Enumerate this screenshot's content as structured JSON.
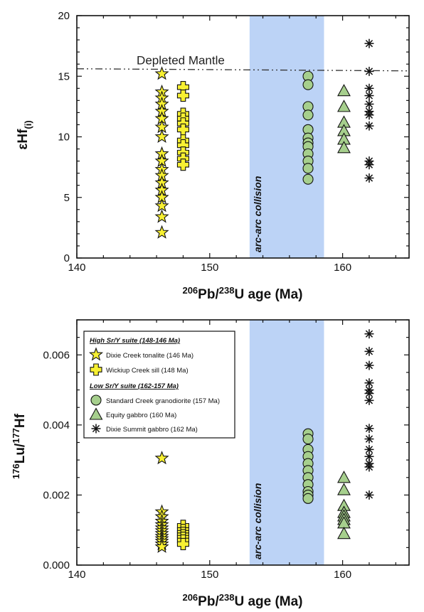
{
  "chart_data": [
    {
      "type": "scatter",
      "panel": "top",
      "xlim": [
        140,
        165
      ],
      "ylim": [
        0,
        20
      ],
      "x_ticks": [
        "140",
        "150",
        "160"
      ],
      "y_ticks": [
        "0",
        "5",
        "10",
        "15",
        "20"
      ],
      "xlabel": {
        "sup1": "206",
        "mid1": "Pb/",
        "sup2": "238",
        "rest": "U age (Ma)"
      },
      "ylabel": {
        "main": "εHf",
        "sub": "(i)"
      },
      "depleted_mantle": {
        "y": 15.5,
        "label": "Depleted Mantle"
      },
      "shaded_band": {
        "x": [
          153,
          158.6
        ],
        "label": "arc-arc collision",
        "color": "#bcd3f6"
      },
      "series": [
        {
          "key": "dixie_creek",
          "marker": "star",
          "color": "#f7f032",
          "points": [
            [
              146.4,
              15.2
            ],
            [
              146.4,
              13.7
            ],
            [
              146.4,
              13.2
            ],
            [
              146.4,
              12.7
            ],
            [
              146.4,
              12.1
            ],
            [
              146.4,
              11.5
            ],
            [
              146.4,
              10.8
            ],
            [
              146.4,
              10.0
            ],
            [
              146.4,
              8.6
            ],
            [
              146.4,
              8.0
            ],
            [
              146.4,
              7.3
            ],
            [
              146.4,
              6.8
            ],
            [
              146.4,
              6.2
            ],
            [
              146.4,
              5.6
            ],
            [
              146.4,
              5.0
            ],
            [
              146.4,
              4.3
            ],
            [
              146.4,
              3.4
            ],
            [
              146.4,
              2.1
            ]
          ]
        },
        {
          "key": "wickiup",
          "marker": "cross",
          "color": "#f7f032",
          "points": [
            [
              148,
              14.1
            ],
            [
              148,
              13.4
            ],
            [
              148,
              11.9
            ],
            [
              148,
              11.5
            ],
            [
              148,
              11.1
            ],
            [
              148,
              10.6
            ],
            [
              148,
              9.7
            ],
            [
              148,
              9.3
            ],
            [
              148,
              8.7
            ],
            [
              148,
              8.2
            ],
            [
              148,
              7.7
            ]
          ]
        },
        {
          "key": "standard_creek",
          "marker": "circle",
          "color": "#a6cf8d",
          "points": [
            [
              157.4,
              15.0
            ],
            [
              157.4,
              14.3
            ],
            [
              157.4,
              12.5
            ],
            [
              157.4,
              11.8
            ],
            [
              157.4,
              10.6
            ],
            [
              157.4,
              9.9
            ],
            [
              157.4,
              9.5
            ],
            [
              157.4,
              9.2
            ],
            [
              157.4,
              8.6
            ],
            [
              157.4,
              8.0
            ],
            [
              157.4,
              7.4
            ],
            [
              157.4,
              6.5
            ]
          ]
        },
        {
          "key": "equity",
          "marker": "triangle",
          "color": "#a6cf8d",
          "points": [
            [
              160.1,
              13.8
            ],
            [
              160.1,
              12.5
            ],
            [
              160.1,
              11.2
            ],
            [
              160.1,
              10.5
            ],
            [
              160.1,
              9.8
            ],
            [
              160.1,
              9.1
            ]
          ]
        },
        {
          "key": "dixie_summit",
          "marker": "asterisk",
          "color": "#111111",
          "points": [
            [
              162,
              17.7
            ],
            [
              162,
              15.4
            ],
            [
              162,
              14.0
            ],
            [
              162,
              13.4
            ],
            [
              162,
              12.7
            ],
            [
              162,
              12.1
            ],
            [
              162,
              11.8
            ],
            [
              162,
              10.9
            ],
            [
              162,
              8.0
            ],
            [
              162,
              7.7
            ],
            [
              162,
              6.6
            ]
          ]
        }
      ]
    },
    {
      "type": "scatter",
      "panel": "bottom",
      "xlim": [
        140,
        165
      ],
      "ylim": [
        0,
        0.007
      ],
      "x_ticks": [
        "140",
        "150",
        "160"
      ],
      "y_ticks": [
        "0.000",
        "0.002",
        "0.004",
        "0.006"
      ],
      "xlabel": {
        "sup1": "206",
        "mid1": "Pb/",
        "sup2": "238",
        "rest": "U age (Ma)"
      },
      "ylabel": {
        "sup1": "176",
        "mid1": "Lu/",
        "sup2": "177",
        "rest": "Hf"
      },
      "shaded_band": {
        "x": [
          153,
          158.6
        ],
        "label": "arc-arc collision",
        "color": "#bcd3f6"
      },
      "legend": {
        "position": "top-left",
        "high_heading": "High Sr/Y suite (148-146 Ma)",
        "low_heading": "Low Sr/Y suite (162-157 Ma)",
        "entries": [
          {
            "key": "dixie_creek",
            "label": "Dixie Creek tonalite (146 Ma)"
          },
          {
            "key": "wickiup",
            "label": "Wickiup Creek sill (148 Ma)"
          },
          {
            "key": "standard_creek",
            "label": "Standard Creek granodiorite (157 Ma)"
          },
          {
            "key": "equity",
            "label": "Equity gabbro (160 Ma)"
          },
          {
            "key": "dixie_summit",
            "label": "Dixie Summit gabbro (162 Ma)"
          }
        ]
      },
      "series": [
        {
          "key": "dixie_creek",
          "marker": "star",
          "color": "#f7f032",
          "points": [
            [
              146.4,
              0.00305
            ],
            [
              146.4,
              0.00152
            ],
            [
              146.4,
              0.00138
            ],
            [
              146.4,
              0.00125
            ],
            [
              146.4,
              0.00115
            ],
            [
              146.4,
              0.00106
            ],
            [
              146.4,
              0.00098
            ],
            [
              146.4,
              0.0009
            ],
            [
              146.4,
              0.00082
            ],
            [
              146.4,
              0.00075
            ],
            [
              146.4,
              0.00068
            ],
            [
              146.4,
              0.0006
            ],
            [
              146.4,
              0.00052
            ]
          ]
        },
        {
          "key": "wickiup",
          "marker": "cross",
          "color": "#f7f032",
          "points": [
            [
              148,
              0.00112
            ],
            [
              148,
              0.001
            ],
            [
              148,
              0.00092
            ],
            [
              148,
              0.00085
            ],
            [
              148,
              0.00078
            ],
            [
              148,
              0.0007
            ],
            [
              148,
              0.0006
            ]
          ]
        },
        {
          "key": "standard_creek",
          "marker": "circle",
          "color": "#a6cf8d",
          "points": [
            [
              157.4,
              0.00375
            ],
            [
              157.4,
              0.0036
            ],
            [
              157.4,
              0.0033
            ],
            [
              157.4,
              0.0031
            ],
            [
              157.4,
              0.0029
            ],
            [
              157.4,
              0.0027
            ],
            [
              157.4,
              0.0025
            ],
            [
              157.4,
              0.0023
            ],
            [
              157.4,
              0.0021
            ],
            [
              157.4,
              0.002
            ],
            [
              157.4,
              0.0019
            ]
          ]
        },
        {
          "key": "equity",
          "marker": "triangle",
          "color": "#a6cf8d",
          "points": [
            [
              160.1,
              0.0025
            ],
            [
              160.1,
              0.00215
            ],
            [
              160.1,
              0.0017
            ],
            [
              160.1,
              0.0015
            ],
            [
              160.1,
              0.0014
            ],
            [
              160.1,
              0.0013
            ],
            [
              160.1,
              0.0012
            ],
            [
              160.1,
              0.0009
            ]
          ]
        },
        {
          "key": "dixie_summit",
          "marker": "asterisk",
          "color": "#111111",
          "points": [
            [
              162,
              0.0066
            ],
            [
              162,
              0.0061
            ],
            [
              162,
              0.0057
            ],
            [
              162,
              0.0052
            ],
            [
              162,
              0.005
            ],
            [
              162,
              0.0049
            ],
            [
              162,
              0.0047
            ],
            [
              162,
              0.0039
            ],
            [
              162,
              0.0036
            ],
            [
              162,
              0.0033
            ],
            [
              162,
              0.0031
            ],
            [
              162,
              0.0029
            ],
            [
              162,
              0.0028
            ],
            [
              162,
              0.002
            ]
          ]
        }
      ]
    }
  ]
}
